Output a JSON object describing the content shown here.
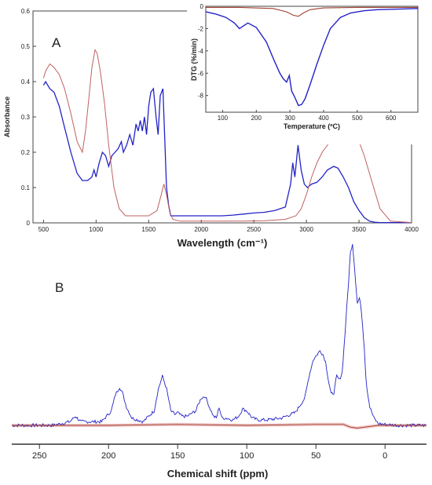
{
  "panel_a_label": "A",
  "panel_b_label": "B",
  "chart_data": [
    {
      "panel": "A",
      "type": "line",
      "title": "",
      "xlabel": "Wavelength (cm⁻¹)",
      "ylabel": "Absorbance",
      "xlim": [
        400,
        4000
      ],
      "ylim": [
        0,
        0.6
      ],
      "xticks": [
        500,
        1000,
        1500,
        2000,
        2500,
        3000,
        3500,
        4000
      ],
      "yticks": [
        0,
        0.1,
        0.2,
        0.3,
        0.4,
        0.5,
        0.6
      ],
      "grid": false,
      "legend": "none",
      "series": [
        {
          "color": "#2323c8",
          "x": [
            500,
            520,
            560,
            600,
            650,
            700,
            760,
            820,
            870,
            920,
            960,
            980,
            1000,
            1030,
            1060,
            1090,
            1120,
            1150,
            1180,
            1210,
            1240,
            1260,
            1290,
            1320,
            1350,
            1380,
            1400,
            1420,
            1440,
            1460,
            1480,
            1500,
            1520,
            1545,
            1570,
            1590,
            1610,
            1635,
            1650,
            1670,
            1690,
            1710,
            1800,
            1900,
            2000,
            2100,
            2200,
            2300,
            2400,
            2500,
            2600,
            2700,
            2800,
            2850,
            2870,
            2890,
            2920,
            2950,
            2980,
            3010,
            3050,
            3100,
            3150,
            3200,
            3260,
            3300,
            3350,
            3400,
            3450,
            3500,
            3550,
            3600,
            3650,
            3700,
            3800,
            4000
          ],
          "y": [
            0.39,
            0.4,
            0.38,
            0.37,
            0.33,
            0.27,
            0.2,
            0.14,
            0.12,
            0.12,
            0.13,
            0.15,
            0.13,
            0.17,
            0.2,
            0.19,
            0.16,
            0.19,
            0.2,
            0.21,
            0.23,
            0.2,
            0.22,
            0.25,
            0.22,
            0.28,
            0.26,
            0.29,
            0.26,
            0.3,
            0.25,
            0.33,
            0.37,
            0.38,
            0.3,
            0.25,
            0.36,
            0.38,
            0.26,
            0.1,
            0.05,
            0.02,
            0.02,
            0.02,
            0.02,
            0.02,
            0.02,
            0.022,
            0.025,
            0.028,
            0.03,
            0.035,
            0.045,
            0.11,
            0.17,
            0.13,
            0.22,
            0.15,
            0.11,
            0.1,
            0.11,
            0.115,
            0.13,
            0.15,
            0.16,
            0.155,
            0.13,
            0.1,
            0.06,
            0.035,
            0.015,
            0.005,
            0.002,
            0.001,
            0.001,
            0.001
          ]
        },
        {
          "color": "#c06060",
          "x": [
            500,
            520,
            560,
            600,
            650,
            700,
            760,
            820,
            870,
            900,
            930,
            960,
            990,
            1010,
            1040,
            1080,
            1120,
            1170,
            1220,
            1280,
            1330,
            1360,
            1400,
            1500,
            1580,
            1620,
            1645,
            1670,
            1700,
            1730,
            1800,
            1900,
            2000,
            2200,
            2400,
            2600,
            2800,
            2900,
            2950,
            3000,
            3050,
            3100,
            3150,
            3200,
            3250,
            3300,
            3350,
            3400,
            3450,
            3500,
            3550,
            3600,
            3650,
            3700,
            3800,
            4000
          ],
          "y": [
            0.41,
            0.43,
            0.45,
            0.44,
            0.42,
            0.38,
            0.31,
            0.23,
            0.2,
            0.26,
            0.35,
            0.44,
            0.49,
            0.48,
            0.43,
            0.34,
            0.22,
            0.1,
            0.04,
            0.02,
            0.02,
            0.02,
            0.02,
            0.02,
            0.035,
            0.08,
            0.11,
            0.08,
            0.03,
            0.01,
            0.005,
            0.005,
            0.005,
            0.005,
            0.005,
            0.006,
            0.01,
            0.02,
            0.04,
            0.08,
            0.13,
            0.17,
            0.2,
            0.22,
            0.24,
            0.255,
            0.26,
            0.26,
            0.255,
            0.23,
            0.19,
            0.14,
            0.09,
            0.04,
            0.005,
            0.001
          ]
        }
      ]
    },
    {
      "panel": "A-inset",
      "type": "line",
      "title": "",
      "xlabel": "Temperature (ºC)",
      "ylabel": "DTG (%/min)",
      "xlim": [
        50,
        680
      ],
      "ylim": [
        -9.5,
        0
      ],
      "xticks": [
        100,
        200,
        300,
        400,
        500,
        600
      ],
      "yticks": [
        0,
        -2,
        -4,
        -6,
        -8
      ],
      "grid": false,
      "legend": "none",
      "series": [
        {
          "color": "#2323c8",
          "x": [
            50,
            80,
            110,
            135,
            150,
            160,
            175,
            200,
            230,
            255,
            270,
            280,
            290,
            298,
            305,
            315,
            325,
            335,
            345,
            360,
            380,
            400,
            420,
            450,
            480,
            520,
            560,
            620,
            680
          ],
          "y": [
            -0.5,
            -0.7,
            -1.0,
            -1.5,
            -2.0,
            -1.8,
            -1.5,
            -1.9,
            -3.2,
            -5.0,
            -6.0,
            -6.5,
            -6.8,
            -6.2,
            -7.6,
            -8.2,
            -8.9,
            -8.8,
            -8.3,
            -7.0,
            -5.2,
            -3.5,
            -2.0,
            -1.0,
            -0.6,
            -0.4,
            -0.3,
            -0.25,
            -0.2
          ]
        },
        {
          "color": "#a04030",
          "x": [
            50,
            150,
            250,
            290,
            310,
            325,
            340,
            360,
            400,
            500,
            680
          ],
          "y": [
            -0.1,
            -0.1,
            -0.2,
            -0.5,
            -0.8,
            -0.9,
            -0.6,
            -0.3,
            -0.15,
            -0.1,
            -0.1
          ]
        }
      ]
    },
    {
      "panel": "B",
      "type": "line",
      "title": "",
      "xlabel": "Chemical shift (ppm)",
      "ylabel": "",
      "xlim": [
        270,
        -30
      ],
      "xticks": [
        250,
        200,
        150,
        100,
        50,
        0
      ],
      "grid": false,
      "legend": "none",
      "series": [
        {
          "color": "#2323c8",
          "x": [
            270,
            240,
            228,
            224,
            220,
            205,
            198,
            195,
            192,
            190,
            187,
            183,
            175,
            167,
            164,
            161,
            158,
            155,
            152,
            150,
            147,
            143,
            137,
            133,
            130,
            127,
            124,
            122,
            120,
            118,
            115,
            110,
            106,
            103,
            100,
            96,
            92,
            85,
            75,
            65,
            58,
            55,
            52,
            49,
            47,
            45,
            43,
            41,
            39,
            37,
            35,
            33,
            31,
            29,
            27,
            25,
            23.5,
            22,
            20,
            18.5,
            17,
            15,
            14,
            13,
            11,
            8,
            5,
            0,
            -10,
            -30
          ],
          "y": [
            0.0,
            0.0,
            0.02,
            0.05,
            0.02,
            0.02,
            0.08,
            0.17,
            0.21,
            0.18,
            0.1,
            0.04,
            0.02,
            0.08,
            0.2,
            0.27,
            0.2,
            0.08,
            0.06,
            0.07,
            0.05,
            0.05,
            0.08,
            0.15,
            0.16,
            0.1,
            0.05,
            0.04,
            0.1,
            0.04,
            0.04,
            0.03,
            0.05,
            0.09,
            0.08,
            0.04,
            0.03,
            0.03,
            0.04,
            0.07,
            0.15,
            0.27,
            0.36,
            0.39,
            0.41,
            0.39,
            0.35,
            0.25,
            0.17,
            0.18,
            0.27,
            0.25,
            0.29,
            0.5,
            0.72,
            0.95,
            1.0,
            0.86,
            0.67,
            0.7,
            0.62,
            0.43,
            0.28,
            0.2,
            0.1,
            0.04,
            0.01,
            0.005,
            0.0,
            0.0
          ]
        },
        {
          "color": "#a04030",
          "x": [
            270,
            200,
            150,
            100,
            50,
            30,
            25,
            20,
            15,
            5,
            -30
          ],
          "y": [
            0.0,
            0.0,
            0.005,
            0.0,
            0.005,
            0.005,
            -0.01,
            -0.015,
            -0.01,
            0.0,
            0.0
          ]
        }
      ]
    }
  ]
}
